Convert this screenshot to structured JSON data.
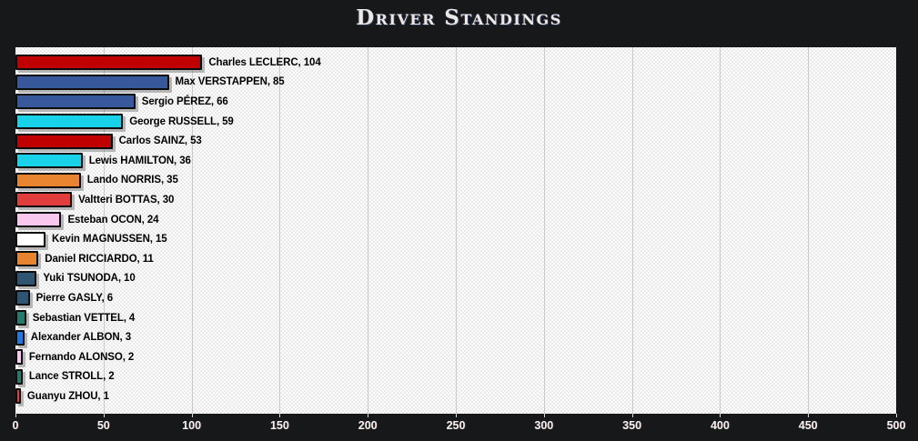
{
  "header": {
    "title": "Driver Standings"
  },
  "chart_data": {
    "type": "bar",
    "orientation": "horizontal",
    "title": "Driver Standings",
    "xlabel": "",
    "ylabel": "",
    "xlim": [
      0,
      500
    ],
    "x_ticks": [
      0,
      50,
      100,
      150,
      200,
      250,
      300,
      350,
      400,
      450,
      500
    ],
    "grid": true,
    "gridline_color": "#c9c9c9",
    "plot_background": "#fdfdfd",
    "page_background": "#17181a",
    "categories": [
      "Charles LECLERC",
      "Max VERSTAPPEN",
      "Sergio PÉREZ",
      "George RUSSELL",
      "Carlos SAINZ",
      "Lewis HAMILTON",
      "Lando NORRIS",
      "Valtteri BOTTAS",
      "Esteban OCON",
      "Kevin MAGNUSSEN",
      "Daniel RICCIARDO",
      "Yuki TSUNODA",
      "Pierre GASLY",
      "Sebastian VETTEL",
      "Alexander ALBON",
      "Fernando ALONSO",
      "Lance STROLL",
      "Guanyu ZHOU"
    ],
    "values": [
      104,
      85,
      66,
      59,
      53,
      36,
      35,
      30,
      24,
      15,
      11,
      10,
      6,
      4,
      3,
      2,
      2,
      1
    ],
    "bar_colors": [
      "#c00000",
      "#37599b",
      "#37599b",
      "#18d2ea",
      "#c00000",
      "#18d2ea",
      "#e8832f",
      "#e23d3d",
      "#fac8ee",
      "#ffffff",
      "#e8832f",
      "#2f5573",
      "#2f5573",
      "#267a6b",
      "#2079e0",
      "#fac8ee",
      "#267a6b",
      "#e23d3d"
    ],
    "label_format": "{name}, {value}",
    "legend": "none"
  }
}
